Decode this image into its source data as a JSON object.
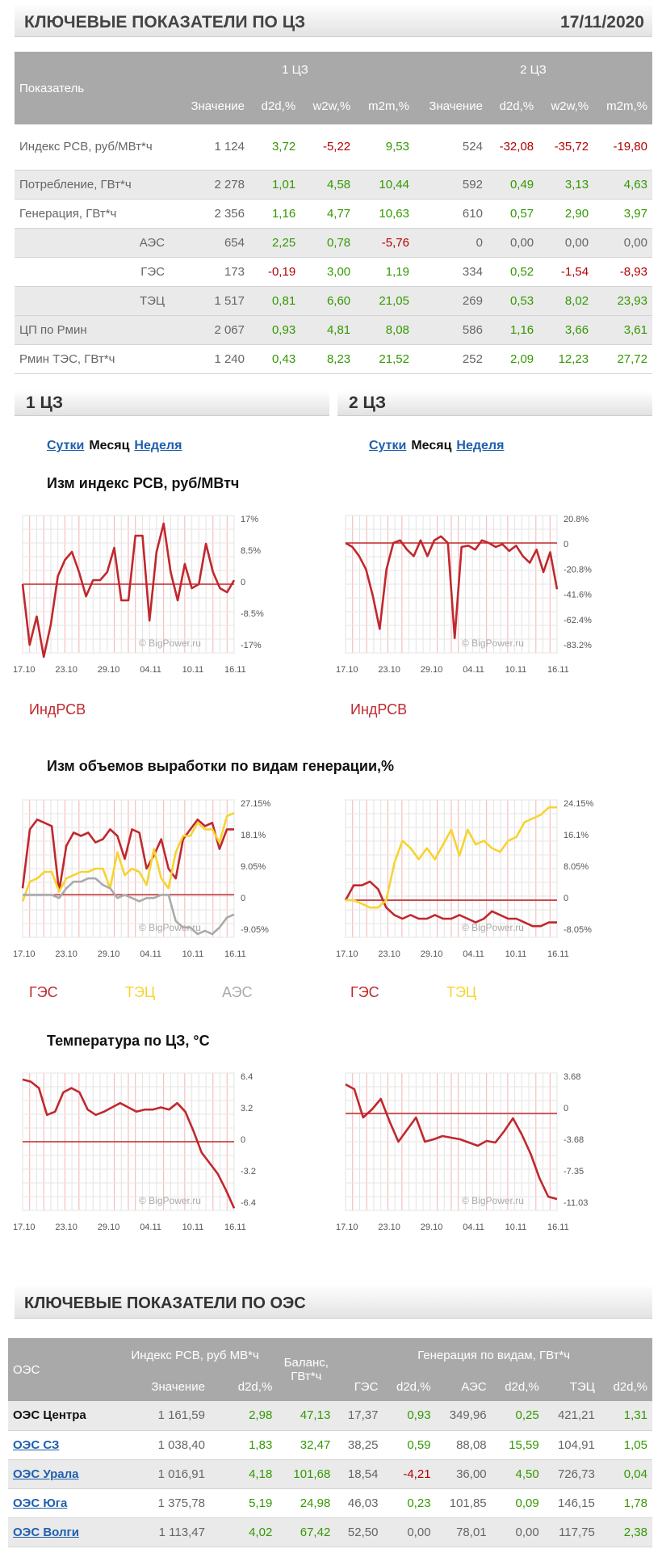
{
  "header": {
    "title": "КЛЮЧЕВЫЕ ПОКАЗАТЕЛИ ПО ЦЗ",
    "date": "17/11/2020"
  },
  "kpi_table": {
    "indicator_label": "Показатель",
    "zone1": "1 ЦЗ",
    "zone2": "2 ЦЗ",
    "cols": [
      "Значение",
      "d2d,%",
      "w2w,%",
      "m2m,%"
    ],
    "rows": [
      {
        "name": "Индекс РСВ, руб/МВт*ч",
        "indent": false,
        "v": [
          "1 124",
          "3,72",
          "-5,22",
          "9,53",
          "524",
          "-32,08",
          "-35,72",
          "-19,80"
        ]
      },
      {
        "name": "Потребление, ГВт*ч",
        "indent": false,
        "v": [
          "2 278",
          "1,01",
          "4,58",
          "10,44",
          "592",
          "0,49",
          "3,13",
          "4,63"
        ]
      },
      {
        "name": "Генерация, ГВт*ч",
        "indent": false,
        "v": [
          "2 356",
          "1,16",
          "4,77",
          "10,63",
          "610",
          "0,57",
          "2,90",
          "3,97"
        ]
      },
      {
        "name": "АЭС",
        "indent": true,
        "v": [
          "654",
          "2,25",
          "0,78",
          "-5,76",
          "0",
          "0,00",
          "0,00",
          "0,00"
        ]
      },
      {
        "name": "ГЭС",
        "indent": true,
        "v": [
          "173",
          "-0,19",
          "3,00",
          "1,19",
          "334",
          "0,52",
          "-1,54",
          "-8,93"
        ]
      },
      {
        "name": "ТЭЦ",
        "indent": true,
        "v": [
          "1 517",
          "0,81",
          "6,60",
          "21,05",
          "269",
          "0,53",
          "8,02",
          "23,93"
        ]
      },
      {
        "name": "ЦП по Рмин",
        "indent": false,
        "v": [
          "2 067",
          "0,93",
          "4,81",
          "8,08",
          "586",
          "1,16",
          "3,66",
          "3,61"
        ]
      },
      {
        "name": "Рмин ТЭС, ГВт*ч",
        "indent": false,
        "v": [
          "1 240",
          "0,43",
          "8,23",
          "21,52",
          "252",
          "2,09",
          "12,23",
          "27,72"
        ]
      }
    ]
  },
  "sections": {
    "left": "1 ЦЗ",
    "right": "2 ЦЗ"
  },
  "periods": {
    "day": "Сутки",
    "month": "Месяц",
    "week": "Неделя"
  },
  "watermark": "© BigPower.ru",
  "colors": {
    "red": "#c0282d",
    "yellow": "#f6d431",
    "gray": "#aaaaaa",
    "pos": "#339900",
    "neg": "#b30000"
  },
  "chart_titles": {
    "price": "Изм индекс РСВ, руб/МВтч",
    "gen": "Изм объемов выработки по видам генерации,%",
    "temp": "Температура по ЦЗ, °C"
  },
  "legends": {
    "price": "ИндРСВ",
    "ges": "ГЭС",
    "tec": "ТЭЦ",
    "aes": "АЭС"
  },
  "x_ticks": [
    "17.10",
    "23.10",
    "29.10",
    "04.11",
    "10.11",
    "16.11"
  ],
  "chart_data": [
    {
      "type": "line",
      "id": "price1",
      "yticks": [
        "17%",
        "8.5%",
        "0",
        "-8.5%",
        "-17%"
      ],
      "ylim": [
        -17,
        17
      ],
      "series": [
        {
          "name": "ИндРСВ",
          "color": "red",
          "values": [
            0,
            -15,
            -8,
            -18,
            -10,
            2,
            6,
            8,
            3,
            -3,
            1,
            1,
            3,
            9,
            -4,
            -4,
            12,
            12,
            -9,
            8,
            15,
            3,
            -4,
            5,
            -1,
            0,
            10,
            3,
            -1,
            -2,
            1
          ]
        }
      ]
    },
    {
      "type": "line",
      "id": "price2",
      "yticks": [
        "20.8%",
        "0",
        "-20.8%",
        "-41.6%",
        "-62.4%",
        "-83.2%"
      ],
      "ylim": [
        -83.2,
        20.8
      ],
      "series": [
        {
          "name": "ИндРСВ",
          "color": "red",
          "values": [
            0,
            -3,
            -10,
            -20,
            -40,
            -65,
            -20,
            0,
            2,
            -5,
            -10,
            2,
            -10,
            2,
            5,
            0,
            -72,
            -3,
            -2,
            -5,
            2,
            0,
            -3,
            -1,
            -6,
            -2,
            -10,
            -15,
            -5,
            -22,
            -7,
            -35
          ]
        }
      ]
    },
    {
      "type": "line",
      "id": "gen1",
      "yticks": [
        "27.15%",
        "18.1%",
        "9.05%",
        "0",
        "-9.05%"
      ],
      "ylim": [
        -13,
        29
      ],
      "series": [
        {
          "name": "ГЭС",
          "color": "red",
          "values": [
            2,
            20,
            23,
            22,
            21,
            1,
            15,
            19,
            18,
            19,
            16,
            17,
            20,
            18,
            11,
            20,
            19,
            8,
            12,
            17,
            8,
            5,
            17,
            20,
            23,
            21,
            22,
            14,
            20,
            20
          ]
        },
        {
          "name": "ТЭЦ",
          "color": "yellow",
          "values": [
            -2,
            4,
            5,
            7,
            7,
            1,
            5,
            6,
            7,
            7,
            8,
            8,
            2,
            13,
            6,
            8,
            7,
            3,
            14,
            5,
            2,
            13,
            18,
            18,
            22,
            20,
            20,
            16,
            24,
            25
          ]
        },
        {
          "name": "АЭС",
          "color": "gray",
          "values": [
            0,
            0,
            0,
            0,
            0,
            -1,
            2,
            4,
            4,
            5,
            5,
            3,
            2,
            -1,
            0,
            -1,
            -2,
            -1,
            -1,
            0,
            0,
            -8,
            -10,
            -10,
            -12,
            -11,
            -12,
            -10,
            -7,
            -6
          ]
        }
      ]
    },
    {
      "type": "line",
      "id": "gen2",
      "yticks": [
        "24.15%",
        "16.1%",
        "8.05%",
        "0",
        "-8.05%"
      ],
      "ylim": [
        -10,
        27
      ],
      "series": [
        {
          "name": "ГЭС",
          "color": "red",
          "values": [
            0,
            4,
            4,
            5,
            3,
            -2,
            -4,
            -5,
            -4,
            -5,
            -5,
            -4,
            -5,
            -5,
            -4,
            -5,
            -6,
            -5,
            -3,
            -4,
            -5,
            -5,
            -6,
            -7,
            -7,
            -6,
            -6
          ]
        },
        {
          "name": "ТЭЦ",
          "color": "yellow",
          "values": [
            0,
            0,
            -1,
            -2,
            -2,
            0,
            10,
            16,
            14,
            11,
            14,
            11,
            15,
            19,
            12,
            19,
            15,
            16,
            14,
            13,
            16,
            17,
            21,
            22,
            23,
            25,
            25
          ]
        }
      ]
    },
    {
      "type": "line",
      "id": "temp1",
      "yticks": [
        "6.4",
        "3.2",
        "0",
        "-3.2",
        "-6.4"
      ],
      "ylim": [
        -6.4,
        6.4
      ],
      "series": [
        {
          "name": "Температура",
          "color": "red",
          "values": [
            5.8,
            5.6,
            5,
            2.5,
            2.8,
            4.6,
            5,
            4.6,
            3,
            2.5,
            2.8,
            3.2,
            3.6,
            3.2,
            2.8,
            3,
            3,
            3.2,
            3,
            3.6,
            2.8,
            1,
            -1,
            -2,
            -3,
            -4.5,
            -6.2
          ]
        }
      ]
    },
    {
      "type": "line",
      "id": "temp2",
      "yticks": [
        "3.68",
        "0",
        "-3.68",
        "-7.35",
        "-11.03"
      ],
      "ylim": [
        -12,
        5
      ],
      "series": [
        {
          "name": "Температура",
          "color": "red",
          "values": [
            3.6,
            3,
            -0.5,
            0.5,
            1.8,
            -1,
            -3.5,
            -2,
            -0.5,
            -3.5,
            -3.2,
            -2.8,
            -3,
            -3.2,
            -3.6,
            -4,
            -3.4,
            -3.6,
            -2.2,
            -0.6,
            -2.6,
            -5,
            -8,
            -10.3,
            -10.6
          ]
        }
      ]
    }
  ],
  "oes_section": {
    "title": "КЛЮЧЕВЫЕ ПОКАЗАТЕЛИ ПО ОЭС"
  },
  "oes_table": {
    "oes_label": "ОЭС",
    "price_group": "Индекс РСВ, руб МВ*ч",
    "balance_label": "Баланс, ГВт*ч",
    "gen_group": "Генерация по видам, ГВт*ч",
    "cols": [
      "Значение",
      "d2d,%",
      "ГЭС",
      "d2d,%",
      "АЭС",
      "d2d,%",
      "ТЭЦ",
      "d2d,%"
    ],
    "rows": [
      {
        "name": "ОЭС Центра",
        "link": false,
        "v": [
          "1 161,59",
          "2,98",
          "47,13",
          "17,37",
          "0,93",
          "349,96",
          "0,25",
          "421,21",
          "1,31"
        ]
      },
      {
        "name": "ОЭС СЗ",
        "link": true,
        "v": [
          "1 038,40",
          "1,83",
          "32,47",
          "38,25",
          "0,59",
          "88,08",
          "15,59",
          "104,91",
          "1,05"
        ]
      },
      {
        "name": "ОЭС Урала",
        "link": true,
        "v": [
          "1 016,91",
          "4,18",
          "101,68",
          "18,54",
          "-4,21",
          "36,00",
          "4,50",
          "726,73",
          "0,04"
        ]
      },
      {
        "name": "ОЭС Юга",
        "link": true,
        "v": [
          "1 375,78",
          "5,19",
          "24,98",
          "46,03",
          "0,23",
          "101,85",
          "0,09",
          "146,15",
          "1,78"
        ]
      },
      {
        "name": "ОЭС Волги",
        "link": true,
        "v": [
          "1 113,47",
          "4,02",
          "67,42",
          "52,50",
          "0,00",
          "78,01",
          "0,00",
          "117,75",
          "2,38"
        ]
      }
    ]
  }
}
